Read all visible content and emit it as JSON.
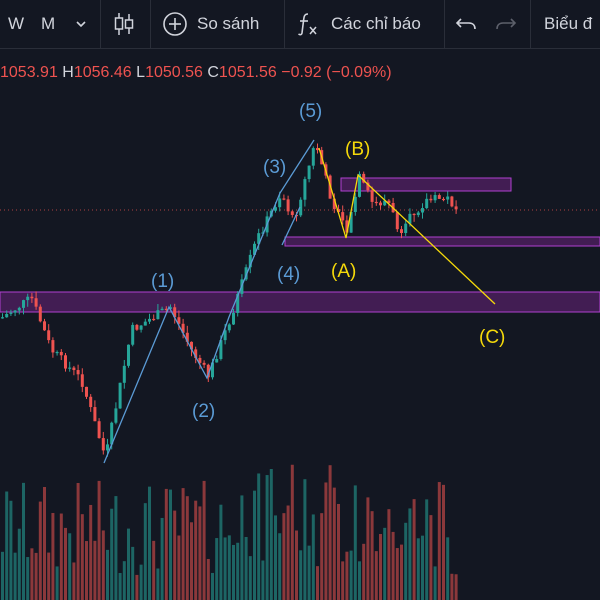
{
  "toolbar": {
    "interval_w": "W",
    "interval_m": "M",
    "compare_label": "So sánh",
    "indicators_label": "Các chỉ báo",
    "chart_label": "Biểu đ"
  },
  "ohlc": {
    "o": "1053.91",
    "h_label": "H",
    "h": "1056.46",
    "l_label": "L",
    "l": "1050.56",
    "c_label": "C",
    "c": "1051.56",
    "change": "−0.92 (−0.09%)"
  },
  "waves": {
    "w1": "(1)",
    "w2": "(2)",
    "w3": "(3)",
    "w4": "(4)",
    "w5": "(5)",
    "wA": "(A)",
    "wB": "(B)",
    "wC": "(C)"
  },
  "colors": {
    "background": "#131722",
    "up": "#26a69a",
    "down": "#ef5350",
    "wave_blue": "#5b9bd5",
    "wave_yellow": "#f5d90a",
    "zone": "#9c27b0"
  }
}
